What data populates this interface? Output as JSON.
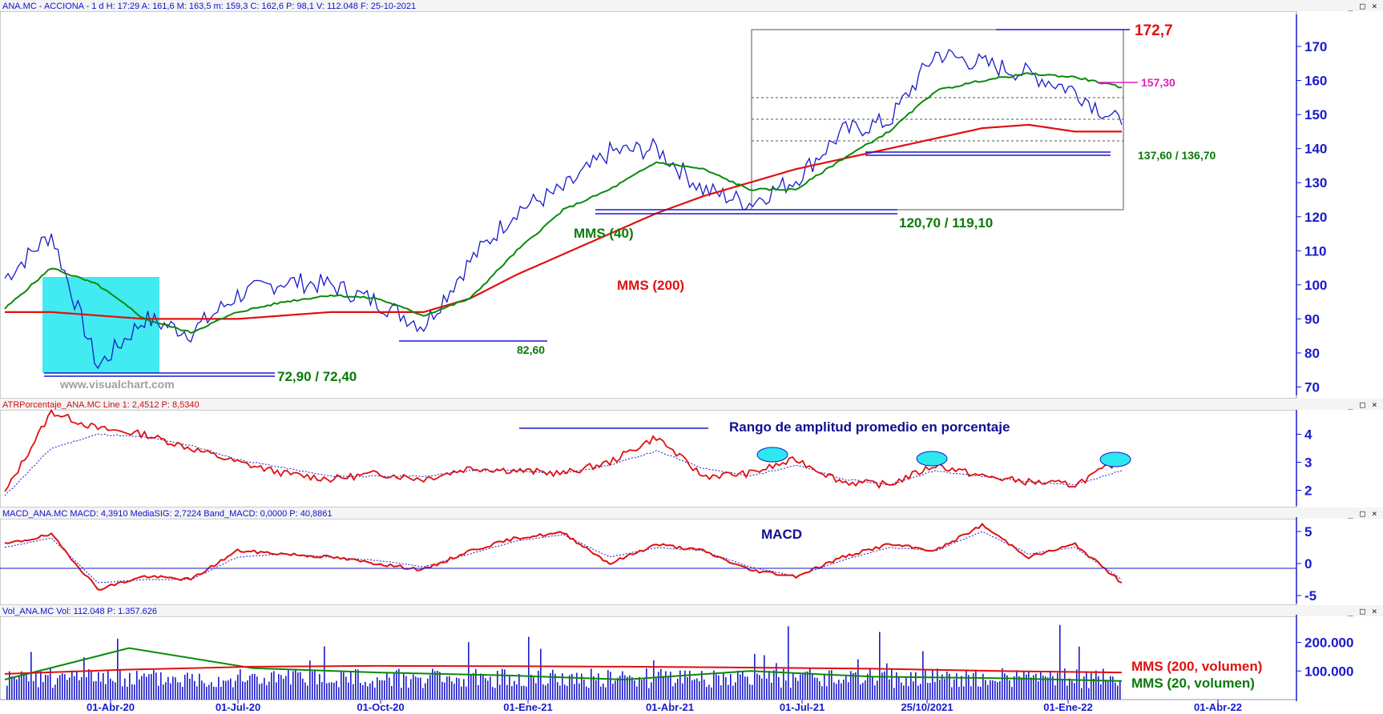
{
  "colors": {
    "price": "#1a1acc",
    "mms200": "#e01010",
    "mms40": "#0a8a0a",
    "highlight": "#2ee8f0",
    "resistance_pink": "#e020c0",
    "grid_box": "#555555"
  },
  "window_buttons": {
    "minimize": "_",
    "restore": "□",
    "close": "×"
  },
  "panels": {
    "price": {
      "header": "ANA.MC - ACCIONA -  1 d  H: 17:29  A: 161,6  M: 163,5  m: 159,3  C: 162,6  P: 98,1  V: 112.048  F: 25-10-2021",
      "yticks": [
        "70",
        "80",
        "90",
        "100",
        "110",
        "120",
        "130",
        "140",
        "150",
        "160",
        "170"
      ],
      "watermark": "www.visualchart.com"
    },
    "atr": {
      "header": "ATRPorcentaje_ANA.MC  Line 1: 2,4512  P: 8,5340",
      "title": "Rango de amplitud promedio en porcentaje",
      "yticks": [
        "2",
        "3",
        "4"
      ]
    },
    "macd": {
      "header": "MACD_ANA.MC  MACD: 4,3910  MediaSIG: 2,7224  Band_MACD: 0,0000  P: 40,8861",
      "title": "MACD",
      "yticks": [
        "-5",
        "0",
        "5"
      ]
    },
    "volume": {
      "header": "Vol_ANA.MC  Vol: 112.048  P: 1.357.626",
      "yticks": [
        "100.000",
        "200.000"
      ],
      "legend_200": "MMS (200, volumen)",
      "legend_20": "MMS (20, volumen)"
    }
  },
  "xaxis": {
    "labels": [
      "01-Abr-20",
      "01-Jul-20",
      "01-Oct-20",
      "01-Ene-21",
      "01-Abr-21",
      "01-Jul-21",
      "25/10/2021",
      "01-Ene-22",
      "01-Abr-22"
    ]
  },
  "annotations": {
    "level_172": "172,7",
    "level_157": "157,30",
    "level_137": "137,60 / 136,70",
    "level_120": "120,70 / 119,10",
    "level_82": "82,60",
    "level_72": "72,90 / 72,40",
    "mms40": "MMS (40)",
    "mms200": "MMS (200)"
  },
  "chart_data": [
    {
      "type": "line",
      "name_panel": "price",
      "y_range": [
        68,
        178
      ],
      "x": [
        "2020-01-01",
        "2020-02-15",
        "2020-03-20",
        "2020-04-15",
        "2020-05-15",
        "2020-06-15",
        "2020-07-15",
        "2020-08-15",
        "2020-09-15",
        "2020-10-15",
        "2020-11-15",
        "2020-12-15",
        "2021-01-15",
        "2021-02-15",
        "2021-03-15",
        "2021-04-15",
        "2021-05-15",
        "2021-06-15",
        "2021-07-15",
        "2021-08-15",
        "2021-09-15",
        "2021-10-15",
        "2021-11-15",
        "2021-12-15",
        "2022-01-15"
      ],
      "series": [
        {
          "values": [
            102,
            115,
            76,
            90,
            86,
            97,
            101,
            100,
            95,
            88,
            107,
            122,
            128,
            139,
            140,
            128,
            124,
            131,
            145,
            148,
            168,
            165,
            162,
            157,
            147
          ]
        },
        {
          "name": "MMS (200)",
          "values": [
            92,
            92,
            91,
            90,
            90,
            90,
            91,
            92,
            92,
            92,
            96,
            103,
            109,
            115,
            121,
            126,
            130,
            134,
            137,
            140,
            143,
            146,
            147,
            145,
            145
          ]
        },
        {
          "name": "MMS (40)",
          "values": [
            93,
            105,
            100,
            90,
            86,
            92,
            95,
            97,
            96,
            91,
            96,
            110,
            122,
            128,
            136,
            134,
            128,
            128,
            137,
            145,
            157,
            160,
            162,
            161,
            158
          ]
        }
      ],
      "levels": [
        172.7,
        157.3,
        137.6,
        136.7,
        120.7,
        119.1,
        82.6,
        72.9,
        72.4
      ]
    },
    {
      "type": "line",
      "name_panel": "atr",
      "y_range": [
        1.5,
        4.7
      ],
      "x": [
        "2020-01-01",
        "2020-02-15",
        "2020-03-20",
        "2020-04-15",
        "2020-05-15",
        "2020-06-15",
        "2020-07-15",
        "2020-08-15",
        "2020-09-15",
        "2020-10-15",
        "2020-11-15",
        "2020-12-15",
        "2021-01-15",
        "2021-02-15",
        "2021-03-15",
        "2021-04-15",
        "2021-05-15",
        "2021-06-15",
        "2021-07-15",
        "2021-08-15",
        "2021-09-15",
        "2021-10-15",
        "2021-11-15",
        "2021-12-15",
        "2022-01-15"
      ],
      "series": [
        {
          "values": [
            1.9,
            4.8,
            4.2,
            4.0,
            3.5,
            3.0,
            2.6,
            2.4,
            2.6,
            2.4,
            2.8,
            2.7,
            2.6,
            3.0,
            3.9,
            2.5,
            2.6,
            3.1,
            2.3,
            2.2,
            2.9,
            2.5,
            2.3,
            2.2,
            3.1
          ]
        },
        {
          "values": [
            1.8,
            3.5,
            4.0,
            3.9,
            3.6,
            3.1,
            2.8,
            2.5,
            2.5,
            2.5,
            2.7,
            2.7,
            2.6,
            2.9,
            3.4,
            2.8,
            2.5,
            2.9,
            2.4,
            2.2,
            2.7,
            2.5,
            2.3,
            2.2,
            2.7
          ]
        }
      ]
    },
    {
      "type": "line",
      "name_panel": "macd",
      "y_range": [
        -6,
        6.5
      ],
      "x": [
        "2020-01-01",
        "2020-02-15",
        "2020-03-20",
        "2020-04-15",
        "2020-05-15",
        "2020-06-15",
        "2020-07-15",
        "2020-08-15",
        "2020-09-15",
        "2020-10-15",
        "2020-11-15",
        "2020-12-15",
        "2021-01-15",
        "2021-02-15",
        "2021-03-15",
        "2021-04-15",
        "2021-05-15",
        "2021-06-15",
        "2021-07-15",
        "2021-08-15",
        "2021-09-15",
        "2021-10-15",
        "2021-11-15",
        "2021-12-15",
        "2022-01-15"
      ],
      "series": [
        {
          "values": [
            3,
            4.5,
            -4,
            -2,
            -2.5,
            2,
            1.5,
            1,
            0,
            -1,
            2,
            4,
            4.8,
            0,
            3,
            2,
            -1,
            -2,
            1,
            3,
            2,
            6,
            1,
            3,
            -3
          ]
        },
        {
          "values": [
            2.5,
            4,
            -3,
            -2.5,
            -2.5,
            1,
            1.5,
            1,
            0.5,
            -0.5,
            1.5,
            3.5,
            4.5,
            1,
            2.5,
            2,
            -0.5,
            -2,
            0.5,
            2.5,
            2,
            5,
            1.5,
            2.5,
            -2.5
          ]
        }
      ]
    },
    {
      "type": "bar",
      "name_panel": "volume",
      "y_range": [
        0,
        280000
      ],
      "series": [
        {
          "name": "MMS (200, volumen)",
          "values": [
            90000,
            105000,
            115000,
            118000,
            117000,
            115000,
            112000,
            108000,
            100000,
            95000
          ]
        },
        {
          "name": "MMS (20, volumen)",
          "values": [
            70000,
            180000,
            110000,
            95000,
            85000,
            70000,
            100000,
            80000,
            75000,
            65000
          ]
        }
      ]
    }
  ]
}
